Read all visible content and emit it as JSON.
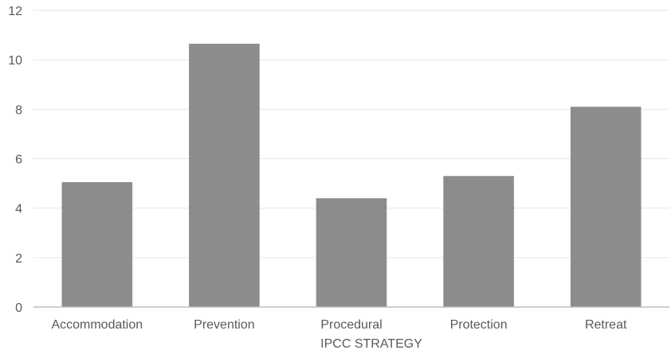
{
  "chart_data": {
    "type": "bar",
    "categories": [
      "Accommodation",
      "Prevention",
      "Procedural",
      "Protection",
      "Retreat"
    ],
    "values": [
      5.05,
      10.65,
      4.4,
      5.3,
      8.1
    ],
    "title": "",
    "xlabel": "IPCC STRATEGY",
    "ylabel": "",
    "ylim": [
      0,
      12
    ],
    "yticks": [
      0,
      2,
      4,
      6,
      8,
      10,
      12
    ],
    "grid": true,
    "legend": "none",
    "bar_color": "#8c8c8c"
  }
}
